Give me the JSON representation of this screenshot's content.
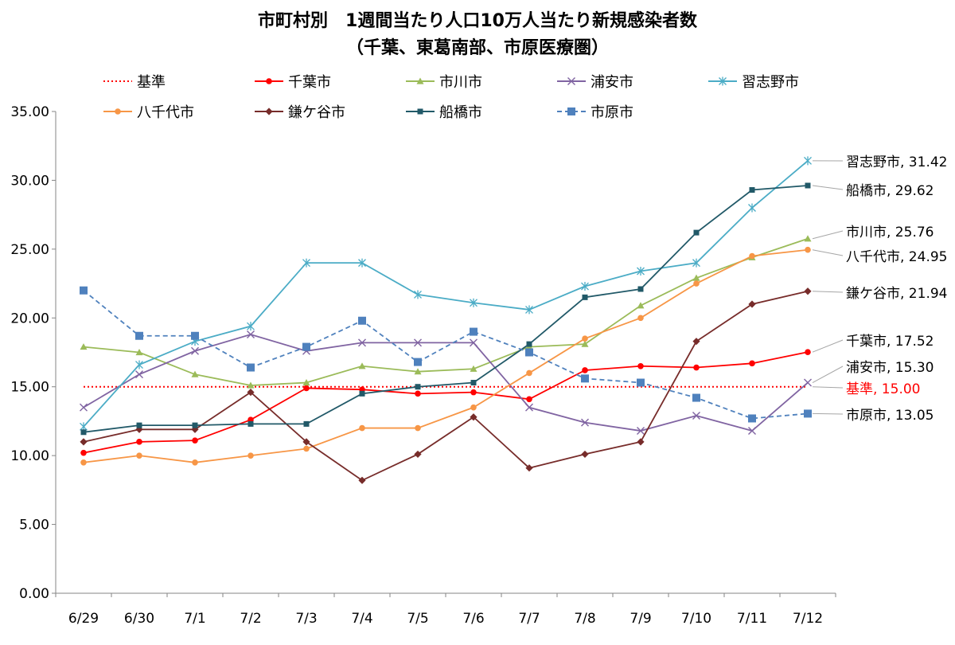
{
  "chart_data": {
    "type": "line",
    "title": [
      "市町村別　1週間当たり人口10万人当たり新規感染者数",
      "（千葉、東葛南部、市原医療圏）"
    ],
    "xlabel": "",
    "ylabel": "",
    "categories": [
      "6/29",
      "6/30",
      "7/1",
      "7/2",
      "7/3",
      "7/4",
      "7/5",
      "7/6",
      "7/7",
      "7/8",
      "7/9",
      "7/10",
      "7/11",
      "7/12"
    ],
    "ylim": [
      0,
      35
    ],
    "yticks": [
      "0.00",
      "5.00",
      "10.00",
      "15.00",
      "20.00",
      "25.00",
      "30.00",
      "35.00"
    ],
    "grid": false,
    "legend_placement": "top",
    "series": [
      {
        "name": "基準",
        "color": "#ff0000",
        "style": "dotted",
        "marker": "none",
        "values": [
          15,
          15,
          15,
          15,
          15,
          15,
          15,
          15,
          15,
          15,
          15,
          15,
          15,
          15
        ],
        "end_label": "基準, 15.00"
      },
      {
        "name": "千葉市",
        "color": "#ff0000",
        "style": "solid",
        "marker": "circle",
        "values": [
          10.2,
          11.0,
          11.1,
          12.6,
          14.9,
          14.8,
          14.5,
          14.6,
          14.1,
          16.2,
          16.5,
          16.4,
          16.7,
          17.52
        ],
        "end_label": "千葉市, 17.52"
      },
      {
        "name": "市川市",
        "color": "#9bbb59",
        "style": "solid",
        "marker": "triangle",
        "values": [
          17.9,
          17.5,
          15.9,
          15.1,
          15.3,
          16.5,
          16.1,
          16.3,
          17.9,
          18.1,
          20.9,
          22.9,
          24.4,
          25.76
        ],
        "end_label": "市川市, 25.76"
      },
      {
        "name": "浦安市",
        "color": "#8064a2",
        "style": "solid",
        "marker": "x",
        "values": [
          13.5,
          15.9,
          17.6,
          18.8,
          17.6,
          18.2,
          18.2,
          18.2,
          13.5,
          12.4,
          11.8,
          12.9,
          11.8,
          15.3
        ],
        "end_label": "浦安市, 15.30"
      },
      {
        "name": "習志野市",
        "color": "#4bacc6",
        "style": "solid",
        "marker": "star",
        "values": [
          12.1,
          16.6,
          18.3,
          19.4,
          24.0,
          24.0,
          21.7,
          21.1,
          20.6,
          22.3,
          23.4,
          24.0,
          28.0,
          31.42
        ],
        "end_label": "習志野市, 31.42"
      },
      {
        "name": "八千代市",
        "color": "#f79646",
        "style": "solid",
        "marker": "circle",
        "values": [
          9.5,
          10.0,
          9.5,
          10.0,
          10.5,
          12.0,
          12.0,
          13.5,
          16.0,
          18.5,
          20.0,
          22.5,
          24.5,
          24.95
        ],
        "end_label": "八千代市, 24.95"
      },
      {
        "name": "鎌ケ谷市",
        "color": "#772c2a",
        "style": "solid",
        "marker": "diamond",
        "values": [
          11.0,
          11.9,
          11.9,
          14.6,
          11.0,
          8.2,
          10.1,
          12.8,
          9.1,
          10.1,
          11.0,
          18.3,
          21.0,
          21.94
        ],
        "end_label": "鎌ケ谷市, 21.94"
      },
      {
        "name": "船橋市",
        "color": "#215968",
        "style": "solid",
        "marker": "square-small",
        "values": [
          11.7,
          12.2,
          12.2,
          12.3,
          12.3,
          14.5,
          15.0,
          15.3,
          18.1,
          21.5,
          22.1,
          26.2,
          29.3,
          29.62
        ],
        "end_label": "船橋市, 29.62"
      },
      {
        "name": "市原市",
        "color": "#4f81bd",
        "style": "dashed",
        "marker": "square",
        "values": [
          22.0,
          18.7,
          18.7,
          16.4,
          17.9,
          19.8,
          16.8,
          19.0,
          17.5,
          15.6,
          15.3,
          14.2,
          12.7,
          13.05
        ],
        "end_label": "市原市, 13.05"
      }
    ]
  }
}
